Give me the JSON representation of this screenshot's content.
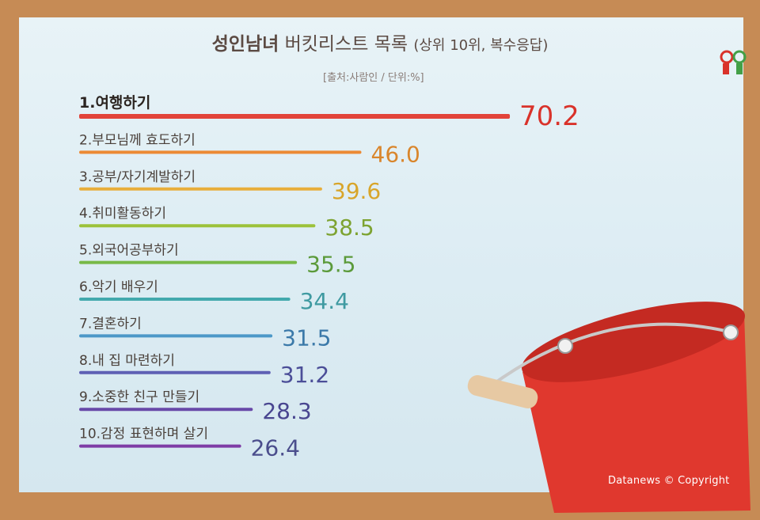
{
  "title": {
    "main": "성인남녀",
    "rest": " 버킷리스트 목록 ",
    "paren": "(상위 10위, 복수응답)"
  },
  "source": "[출처:사람인 / 단위:%]",
  "copyright": "Datanews © Copyright",
  "colors": {
    "series": [
      "#e2433a",
      "#ec8a35",
      "#e8ae3a",
      "#9cc23a",
      "#78b947",
      "#43a9ad",
      "#4c98c8",
      "#5e60b4",
      "#6849a8",
      "#7e3ca6"
    ],
    "values": [
      "#d9322a",
      "#d9862c",
      "#d8a52a",
      "#7da331",
      "#5b9a3a",
      "#3f9aa1",
      "#3b79a9",
      "#4b4e98",
      "#494690",
      "#4a4d8c"
    ]
  },
  "chart_data": {
    "type": "bar",
    "title": "성인남녀 버킷리스트 목록 (상위 10위, 복수응답)",
    "categories": [
      "1.여행하기",
      "2.부모님께 효도하기",
      "3.공부/자기계발하기",
      "4.취미활동하기",
      "5.외국어공부하기",
      "6.악기 배우기",
      "7.결혼하기",
      "8.내 집 마련하기",
      "9.소중한 친구 만들기",
      "10.감정 표현하며 살기"
    ],
    "values": [
      70.2,
      46.0,
      39.6,
      38.5,
      35.5,
      34.4,
      31.5,
      31.2,
      28.3,
      26.4
    ],
    "value_labels": [
      "70.2",
      "46.0",
      "39.6",
      "38.5",
      "35.5",
      "34.4",
      "31.5",
      "31.2",
      "28.3",
      "26.4"
    ],
    "unit": "%",
    "orientation": "horizontal",
    "grid": false
  }
}
